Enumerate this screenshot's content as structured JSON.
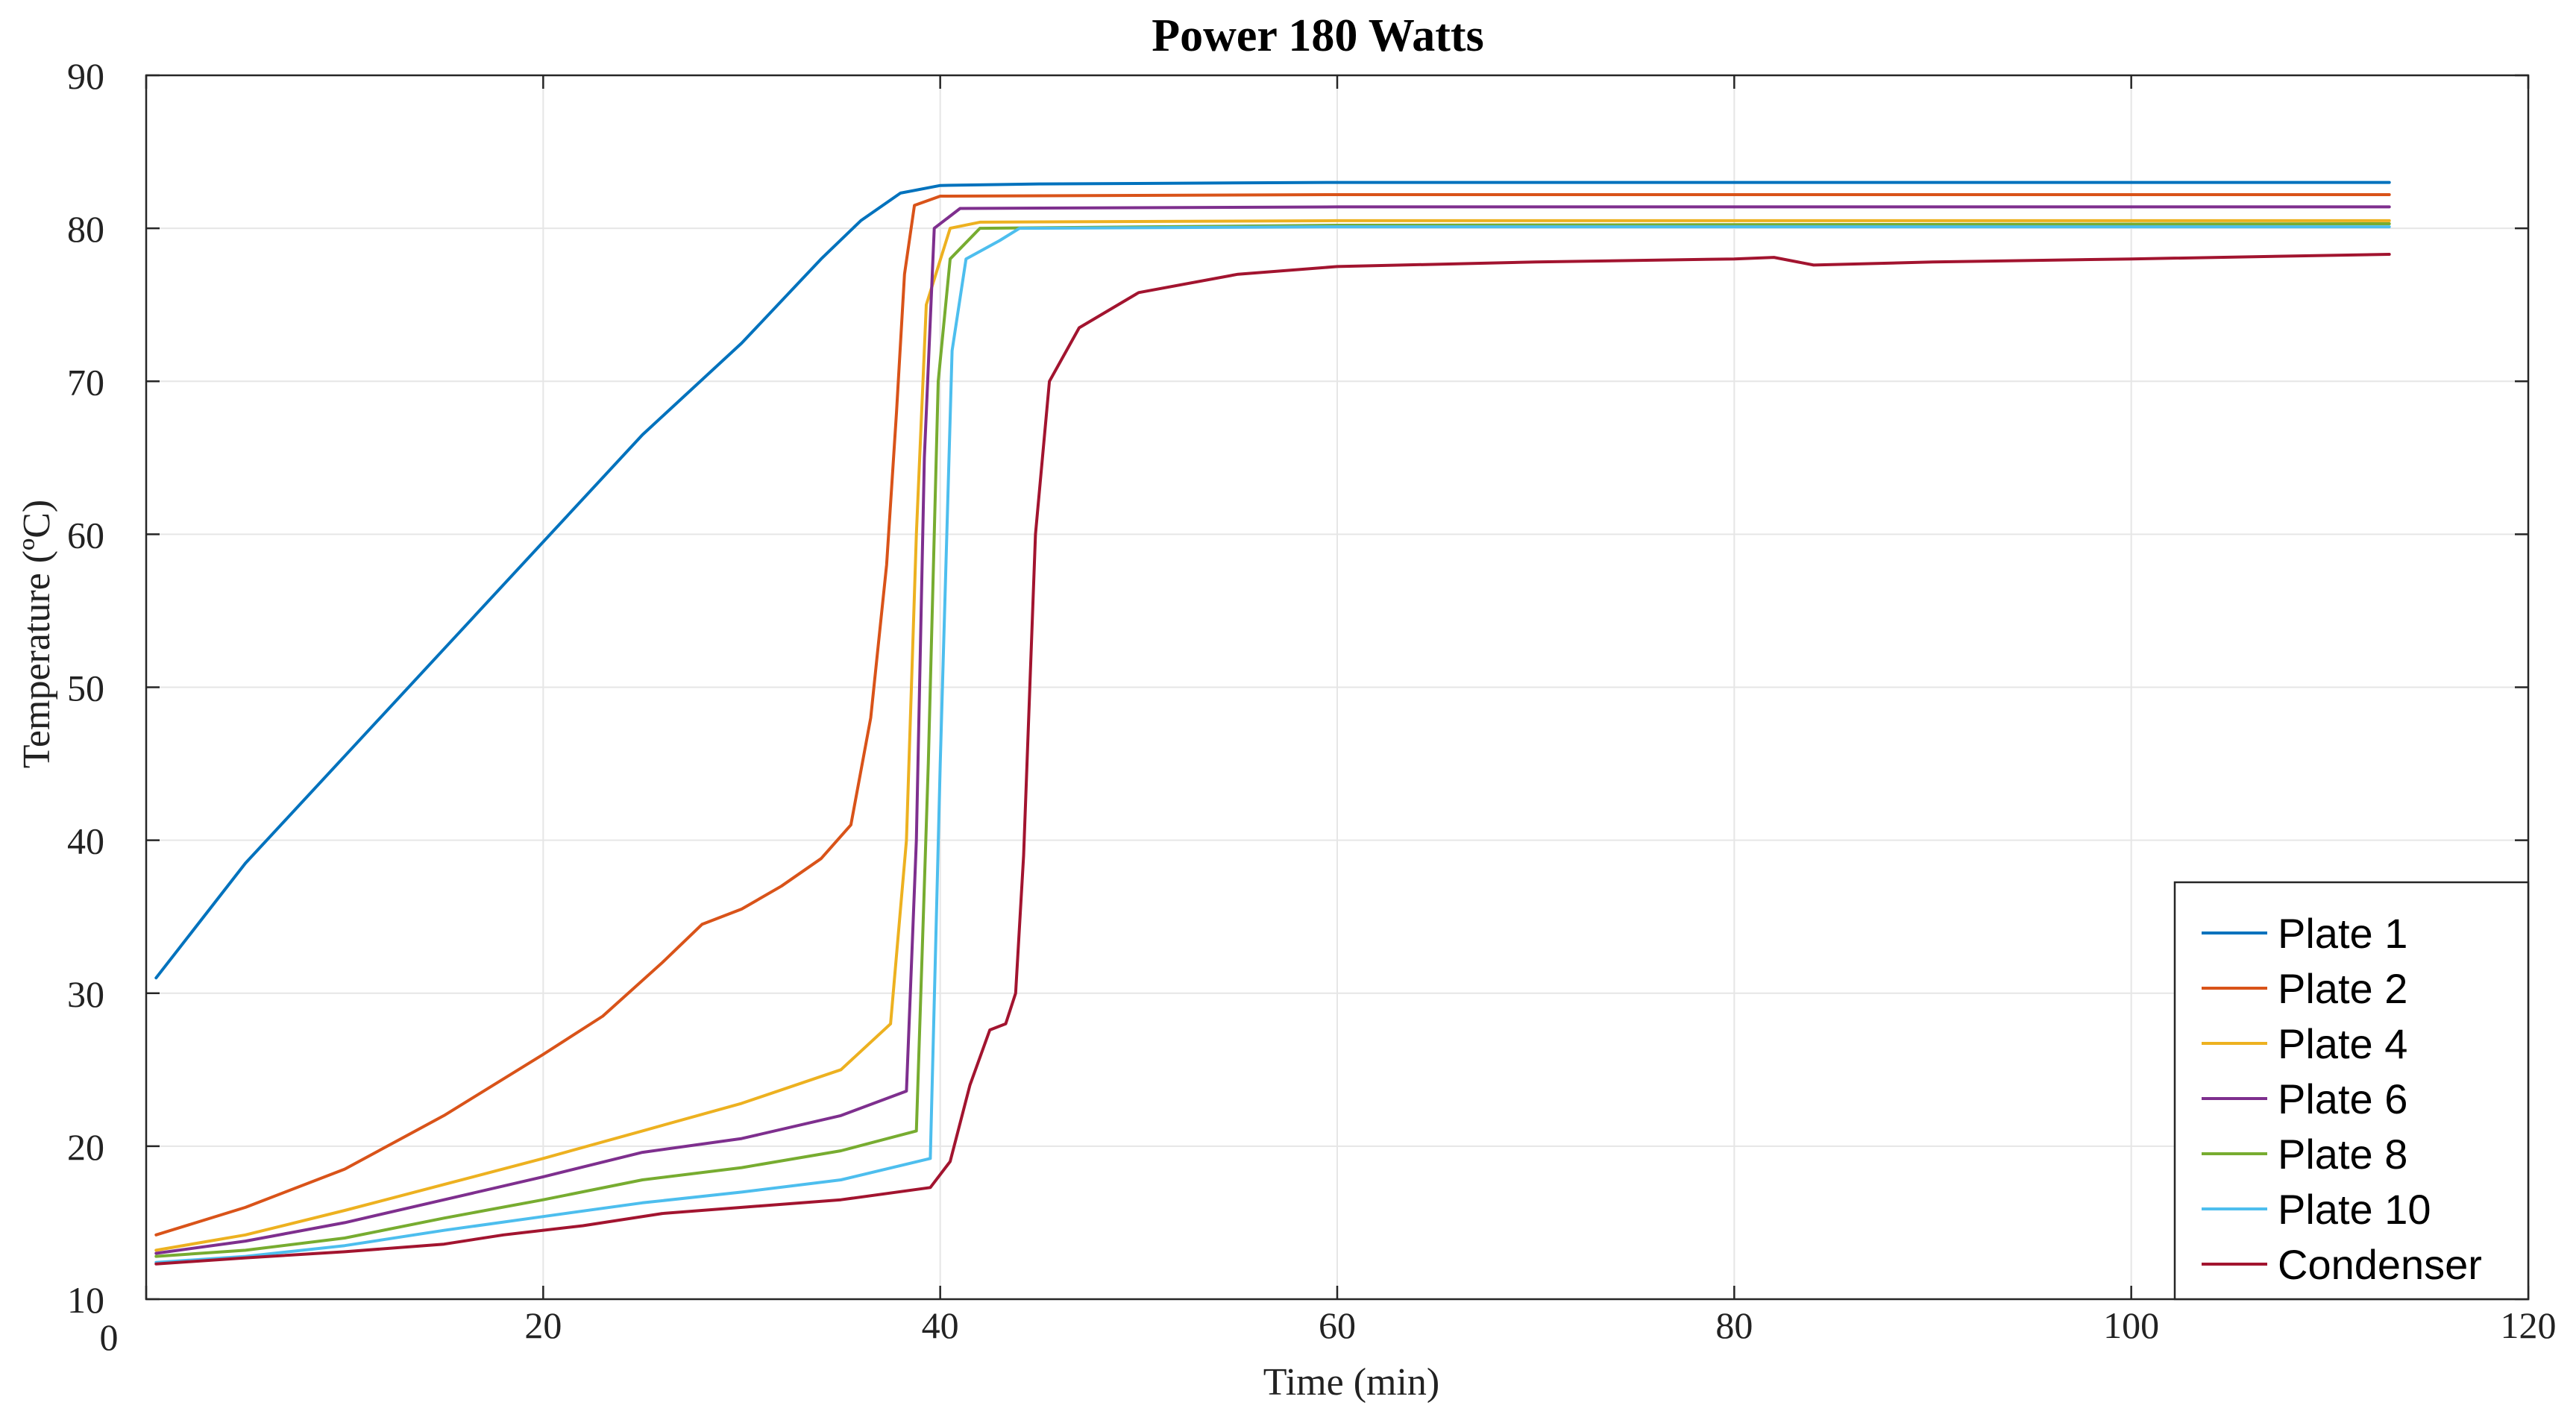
{
  "chart_data": {
    "type": "line",
    "title": "Power 180 Watts",
    "xlabel": "Time (min)",
    "ylabel": "Temperature (ºC)",
    "xlim": [
      0,
      120
    ],
    "ylim": [
      10,
      90
    ],
    "xticks": [
      0,
      20,
      40,
      60,
      80,
      100,
      120
    ],
    "xtick_labels": [
      "0",
      "20",
      "40",
      "60",
      "80",
      "100",
      "120"
    ],
    "yticks": [
      10,
      20,
      30,
      40,
      50,
      60,
      70,
      80,
      90
    ],
    "ytick_labels": [
      "10",
      "20",
      "30",
      "40",
      "50",
      "60",
      "70",
      "80",
      "90"
    ],
    "grid": true,
    "legend_position": "bottom-right",
    "series": [
      {
        "name": "Plate 1",
        "color": "#0072BD",
        "points": [
          [
            0.5,
            31
          ],
          [
            5,
            38.5
          ],
          [
            10,
            45.5
          ],
          [
            15,
            52.5
          ],
          [
            20,
            59.5
          ],
          [
            25,
            66.5
          ],
          [
            30,
            72.5
          ],
          [
            34,
            78
          ],
          [
            36,
            80.5
          ],
          [
            38,
            82.3
          ],
          [
            40,
            82.8
          ],
          [
            45,
            82.9
          ],
          [
            60,
            83
          ],
          [
            80,
            83
          ],
          [
            113,
            83
          ]
        ]
      },
      {
        "name": "Plate 2",
        "color": "#D95319",
        "points": [
          [
            0.5,
            14.2
          ],
          [
            5,
            16
          ],
          [
            10,
            18.5
          ],
          [
            15,
            22
          ],
          [
            20,
            26
          ],
          [
            23,
            28.5
          ],
          [
            26,
            32
          ],
          [
            28,
            34.5
          ],
          [
            30,
            35.5
          ],
          [
            32,
            37
          ],
          [
            34,
            38.8
          ],
          [
            35.5,
            41
          ],
          [
            36.5,
            48
          ],
          [
            37.3,
            58
          ],
          [
            37.8,
            68
          ],
          [
            38.2,
            77
          ],
          [
            38.7,
            81.5
          ],
          [
            40,
            82.1
          ],
          [
            60,
            82.2
          ],
          [
            113,
            82.2
          ]
        ]
      },
      {
        "name": "Plate 4",
        "color": "#EDB120",
        "points": [
          [
            0.5,
            13.2
          ],
          [
            5,
            14.2
          ],
          [
            10,
            15.8
          ],
          [
            15,
            17.5
          ],
          [
            20,
            19.2
          ],
          [
            25,
            21
          ],
          [
            30,
            22.8
          ],
          [
            35,
            25
          ],
          [
            37.5,
            28
          ],
          [
            38.3,
            40
          ],
          [
            38.8,
            60
          ],
          [
            39.3,
            75
          ],
          [
            40.5,
            80
          ],
          [
            42,
            80.4
          ],
          [
            60,
            80.5
          ],
          [
            113,
            80.5
          ]
        ]
      },
      {
        "name": "Plate 6",
        "color": "#7E2F8E",
        "points": [
          [
            0.5,
            13
          ],
          [
            5,
            13.8
          ],
          [
            10,
            15
          ],
          [
            15,
            16.5
          ],
          [
            20,
            18
          ],
          [
            25,
            19.6
          ],
          [
            30,
            20.5
          ],
          [
            35,
            22
          ],
          [
            38.3,
            23.6
          ],
          [
            38.8,
            40
          ],
          [
            39.2,
            65
          ],
          [
            39.7,
            80
          ],
          [
            41,
            81.3
          ],
          [
            60,
            81.4
          ],
          [
            113,
            81.4
          ]
        ]
      },
      {
        "name": "Plate 8",
        "color": "#77AC30",
        "points": [
          [
            0.5,
            12.8
          ],
          [
            5,
            13.2
          ],
          [
            10,
            14
          ],
          [
            15,
            15.3
          ],
          [
            20,
            16.5
          ],
          [
            25,
            17.8
          ],
          [
            30,
            18.6
          ],
          [
            35,
            19.7
          ],
          [
            38.8,
            21
          ],
          [
            39.4,
            45
          ],
          [
            39.9,
            70
          ],
          [
            40.5,
            78
          ],
          [
            42,
            80
          ],
          [
            60,
            80.2
          ],
          [
            113,
            80.3
          ]
        ]
      },
      {
        "name": "Plate 10",
        "color": "#4DBEEE",
        "points": [
          [
            0.5,
            12.4
          ],
          [
            5,
            12.8
          ],
          [
            10,
            13.5
          ],
          [
            15,
            14.5
          ],
          [
            20,
            15.4
          ],
          [
            25,
            16.3
          ],
          [
            30,
            17
          ],
          [
            35,
            17.8
          ],
          [
            39.5,
            19.2
          ],
          [
            40,
            45
          ],
          [
            40.6,
            72
          ],
          [
            41.3,
            78
          ],
          [
            43,
            79.2
          ],
          [
            44,
            80
          ],
          [
            60,
            80.1
          ],
          [
            113,
            80.1
          ]
        ]
      },
      {
        "name": "Condenser",
        "color": "#A2142F",
        "points": [
          [
            0.5,
            12.3
          ],
          [
            5,
            12.7
          ],
          [
            10,
            13.1
          ],
          [
            15,
            13.6
          ],
          [
            18,
            14.2
          ],
          [
            22,
            14.8
          ],
          [
            26,
            15.6
          ],
          [
            30,
            16
          ],
          [
            35,
            16.5
          ],
          [
            39.5,
            17.3
          ],
          [
            40.5,
            19
          ],
          [
            41.5,
            24
          ],
          [
            42.5,
            27.6
          ],
          [
            43.3,
            28
          ],
          [
            43.8,
            30
          ],
          [
            44.2,
            39
          ],
          [
            44.8,
            60
          ],
          [
            45.5,
            70
          ],
          [
            47,
            73.5
          ],
          [
            50,
            75.8
          ],
          [
            55,
            77
          ],
          [
            60,
            77.5
          ],
          [
            70,
            77.8
          ],
          [
            80,
            78
          ],
          [
            82,
            78.1
          ],
          [
            84,
            77.6
          ],
          [
            90,
            77.8
          ],
          [
            100,
            78
          ],
          [
            113,
            78.3
          ]
        ]
      }
    ]
  }
}
